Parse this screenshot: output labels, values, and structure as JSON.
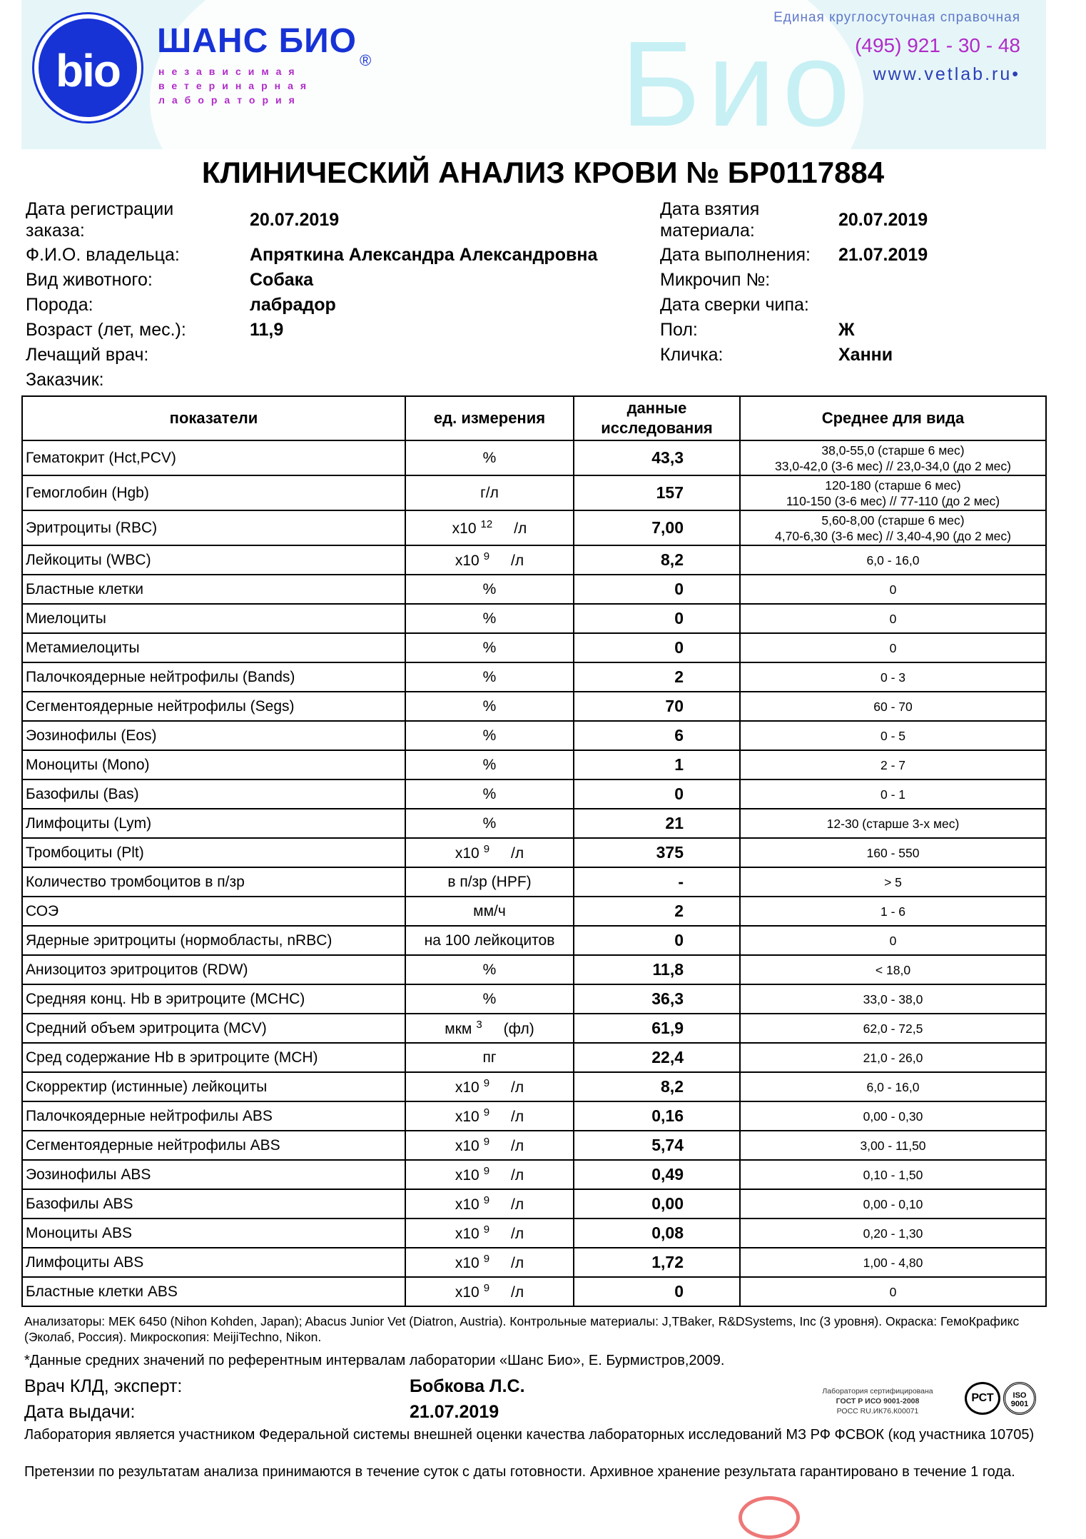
{
  "header": {
    "logo_text": "bio",
    "brand": "ШАНС БИО",
    "registered": "®",
    "tagline": [
      "независимая",
      "ветеринарная",
      "лаборатория"
    ],
    "watermark": "Био",
    "hotline_label": "Единая круглосуточная справочная",
    "phone": "(495)  921 - 30 - 48",
    "website": "www.vetlab.ru•"
  },
  "title": "КЛИНИЧЕСКИЙ АНАЛИЗ КРОВИ  № БР0117884",
  "info": {
    "left": [
      {
        "label": "Дата регистрации заказа:",
        "value": "20.07.2019"
      },
      {
        "label": "Ф.И.О. владельца:",
        "value": "Апряткина Александра Александровна"
      },
      {
        "label": "Вид животного:",
        "value": "Собака"
      },
      {
        "label": "Порода:",
        "value": "лабрадор"
      },
      {
        "label": "Возраст (лет, мес.):",
        "value": "11,9"
      },
      {
        "label": "Лечащий врач:",
        "value": ""
      },
      {
        "label": "Заказчик:",
        "value": ""
      }
    ],
    "right": [
      {
        "label": "Дата взятия материала:",
        "value": "20.07.2019"
      },
      {
        "label": "Дата выполнения:",
        "value": "21.07.2019"
      },
      {
        "label": "Микрочип №:",
        "value": ""
      },
      {
        "label": "Дата сверки чипа:",
        "value": ""
      },
      {
        "label": "Пол:",
        "value": "Ж"
      },
      {
        "label": "Кличка:",
        "value": "Ханни"
      }
    ]
  },
  "table": {
    "headers": [
      "показатели",
      "ед. измерения",
      "данные исследования",
      "Среднее для вида"
    ],
    "rows": [
      {
        "name": "Гематокрит (Hct,PCV)",
        "unit": "%",
        "value": "43,3",
        "ref": [
          "38,0-55,0 (старше 6 мес)",
          "33,0-42,0 (3-6 мес)  //  23,0-34,0 (до 2 мес)"
        ]
      },
      {
        "name": "Гемоглобин (Hgb)",
        "unit": "г/л",
        "value": "157",
        "ref": [
          "120-180 (старше 6 мес)",
          "110-150 (3-6 мес)  //  77-110  (до 2 мес)"
        ]
      },
      {
        "name": "Эритроциты (RBC)",
        "unit": "x10",
        "exp": "12",
        "suffix": "/л",
        "value": "7,00",
        "ref": [
          "5,60-8,00 (старше 6 мес)",
          "4,70-6,30 (3-6 мес)  //  3,40-4,90 (до 2 мес)"
        ]
      },
      {
        "name": "Лейкоциты (WBC)",
        "unit": "x10",
        "exp": "9",
        "suffix": "/л",
        "value": "8,2",
        "ref": [
          "6,0 - 16,0"
        ]
      },
      {
        "name": "Бластные клетки",
        "unit": "%",
        "value": "0",
        "ref": [
          "0"
        ]
      },
      {
        "name": "Миелоциты",
        "unit": "%",
        "value": "0",
        "ref": [
          "0"
        ]
      },
      {
        "name": "Метамиелоциты",
        "unit": "%",
        "value": "0",
        "ref": [
          "0"
        ]
      },
      {
        "name": "Палочкоядерные нейтрофилы (Bands)",
        "unit": "%",
        "value": "2",
        "ref": [
          "0 - 3"
        ]
      },
      {
        "name": "Сегментоядерные нейтрофилы (Segs)",
        "unit": "%",
        "value": "70",
        "ref": [
          "60 - 70"
        ]
      },
      {
        "name": "Эозинофилы (Eos)",
        "unit": "%",
        "value": "6",
        "ref": [
          "0 - 5"
        ]
      },
      {
        "name": "Моноциты (Mono)",
        "unit": "%",
        "value": "1",
        "ref": [
          "2 - 7"
        ]
      },
      {
        "name": "Базофилы (Bas)",
        "unit": "%",
        "value": "0",
        "ref": [
          "0 - 1"
        ]
      },
      {
        "name": "Лимфоциты (Lym)",
        "unit": "%",
        "value": "21",
        "ref": [
          "12-30 (старше 3-х мес)"
        ]
      },
      {
        "name": "Тромбоциты (Plt)",
        "unit": "x10",
        "exp": "9",
        "suffix": "/л",
        "value": "375",
        "ref": [
          "160 - 550"
        ]
      },
      {
        "name": "Количество тромбоцитов в п/зр",
        "unit": "в п/зр (HPF)",
        "value": "-",
        "ref": [
          "> 5"
        ]
      },
      {
        "name": "СОЭ",
        "unit": "мм/ч",
        "value": "2",
        "ref": [
          "1 - 6"
        ]
      },
      {
        "name": "Ядерные эритроциты (нормобласты, nRBC)",
        "unit": "на 100 лейкоцитов",
        "value": "0",
        "ref": [
          "0"
        ]
      },
      {
        "name": "Анизоцитоз эритроцитов (RDW)",
        "unit": "%",
        "value": "11,8",
        "ref": [
          "< 18,0"
        ]
      },
      {
        "name": "Средняя конц. Hb в эритроците (MCHC)",
        "unit": "%",
        "value": "36,3",
        "ref": [
          "33,0 - 38,0"
        ]
      },
      {
        "name": "Средний объем эритроцита (MCV)",
        "unit": "мкм",
        "exp": "3",
        "suffix": "(фл)",
        "value": "61,9",
        "ref": [
          "62,0 - 72,5"
        ]
      },
      {
        "name": "Сред содержание Hb в эритроците (MCH)",
        "unit": "пг",
        "value": "22,4",
        "ref": [
          "21,0 - 26,0"
        ]
      },
      {
        "name": "Скорректир (истинные) лейкоциты",
        "unit": "x10",
        "exp": "9",
        "suffix": "/л",
        "value": "8,2",
        "ref": [
          "6,0 - 16,0"
        ]
      },
      {
        "name": "Палочкоядерные нейтрофилы ABS",
        "unit": "x10",
        "exp": "9",
        "suffix": "/л",
        "value": "0,16",
        "ref": [
          "0,00 - 0,30"
        ]
      },
      {
        "name": "Сегментоядерные нейтрофилы ABS",
        "unit": "x10",
        "exp": "9",
        "suffix": "/л",
        "value": "5,74",
        "ref": [
          "3,00 - 11,50"
        ]
      },
      {
        "name": "Эозинофилы ABS",
        "unit": "x10",
        "exp": "9",
        "suffix": "/л",
        "value": "0,49",
        "ref": [
          "0,10 - 1,50"
        ]
      },
      {
        "name": "Базофилы ABS",
        "unit": "x10",
        "exp": "9",
        "suffix": "/л",
        "value": "0,00",
        "ref": [
          "0,00 - 0,10"
        ]
      },
      {
        "name": "Моноциты ABS",
        "unit": "x10",
        "exp": "9",
        "suffix": "/л",
        "value": "0,08",
        "ref": [
          "0,20 - 1,30"
        ]
      },
      {
        "name": "Лимфоциты ABS",
        "unit": "x10",
        "exp": "9",
        "suffix": "/л",
        "value": "1,72",
        "ref": [
          "1,00 - 4,80"
        ]
      },
      {
        "name": "Бластные клетки ABS",
        "unit": "x10",
        "exp": "9",
        "suffix": "/л",
        "value": "0",
        "ref": [
          "0"
        ]
      }
    ]
  },
  "footer": {
    "analyzers": "Анализаторы: MEK 6450 (Nihon Kohden, Japan); Abacus Junior Vet (Diatron, Austria). Контрольные материалы: J,TBaker, R&DSystems, Inc (3 уровня). Окраска: ГемоКрафикс (Эколаб, Россия). Микроскопия: MeijiTechno, Nikon.",
    "reference_note": "*Данные средних значений по референтным интервалам лаборатории «Шанс Био», Е. Бурмистров,2009.",
    "doctor_label": "Врач КЛД, эксперт:",
    "doctor": "Бобкова Л.С.",
    "issue_label": "Дата выдачи:",
    "issue_date": "21.07.2019",
    "cert": [
      "Лаборатория сертифицирована",
      "ГОСТ Р ИСО 9001-2008",
      "РОСС RU.ИК76.К00071"
    ],
    "rst_mark": "РСТ",
    "iso_mark": "ISO 9001",
    "fsvok": "Лаборатория является участником Федеральной системы внешней оценки качества лабораторных исследований МЗ РФ ФСВОК (код участника 10705)",
    "claims": "Претензии по результатам анализа принимаются в течение суток с даты готовности. Архивное хранение результата гарантировано в течение 1 года."
  }
}
